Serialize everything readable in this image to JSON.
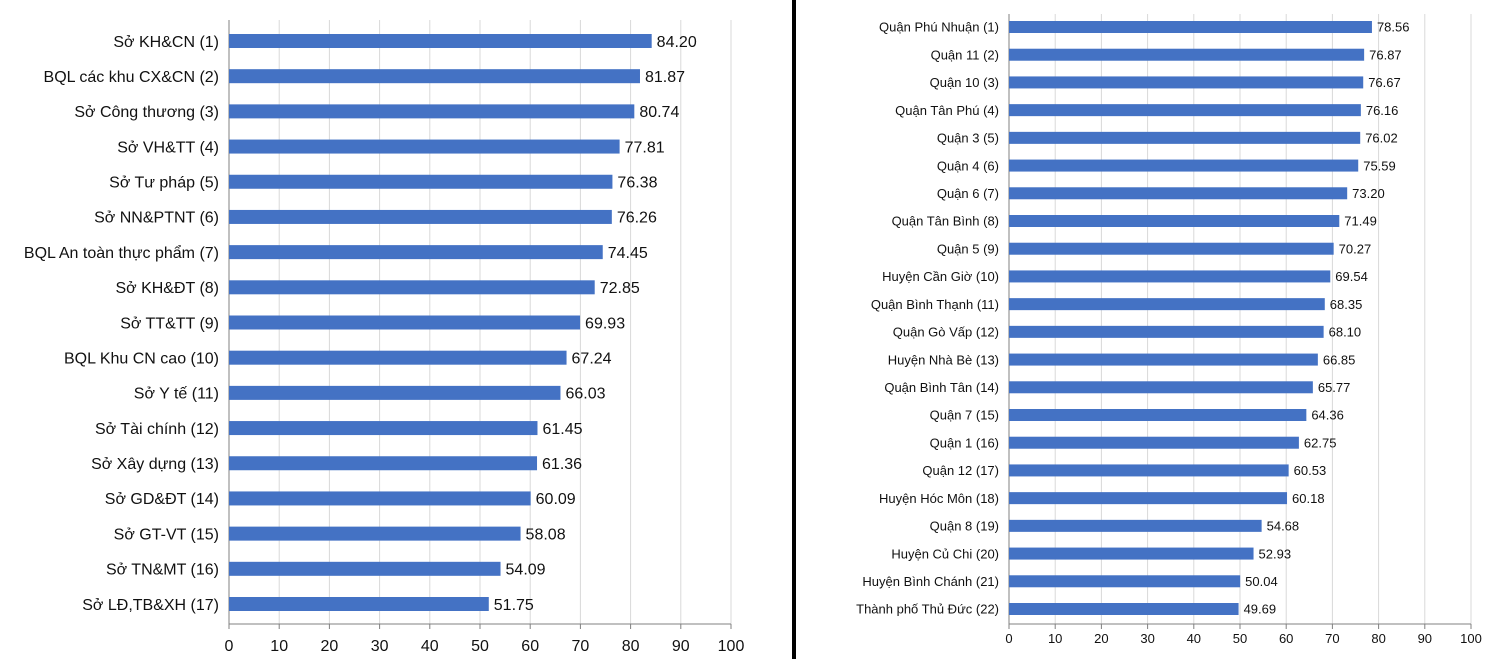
{
  "colors": {
    "bar": "#4472C4",
    "grid": "#d9d9d9",
    "axis": "#808080",
    "divider": "#000000"
  },
  "chart_data": [
    {
      "type": "bar",
      "orientation": "horizontal",
      "title": "",
      "xlabel": "",
      "ylabel": "",
      "xlim": [
        0,
        100
      ],
      "ticks": [
        0,
        10,
        20,
        30,
        40,
        50,
        60,
        70,
        80,
        90,
        100
      ],
      "grid": true,
      "categories": [
        "Sở KH&CN (1)",
        "BQL các khu CX&CN (2)",
        "Sở Công thương (3)",
        "Sở VH&TT (4)",
        "Sở Tư pháp (5)",
        "Sở NN&PTNT (6)",
        "BQL An toàn thực phẩm (7)",
        "Sở KH&ĐT (8)",
        "Sở TT&TT (9)",
        "BQL Khu CN cao (10)",
        "Sở Y tế (11)",
        "Sở Tài chính (12)",
        "Sở Xây dựng (13)",
        "Sở GD&ĐT (14)",
        "Sở GT-VT (15)",
        "Sở TN&MT (16)",
        "Sở LĐ,TB&XH (17)"
      ],
      "values": [
        84.2,
        81.87,
        80.74,
        77.81,
        76.38,
        76.26,
        74.45,
        72.85,
        69.93,
        67.24,
        66.03,
        61.45,
        61.36,
        60.09,
        58.08,
        54.09,
        51.75
      ],
      "value_labels": [
        "84.20",
        "81.87",
        "80.74",
        "77.81",
        "76.38",
        "76.26",
        "74.45",
        "72.85",
        "69.93",
        "67.24",
        "66.03",
        "61.45",
        "61.36",
        "60.09",
        "58.08",
        "54.09",
        "51.75"
      ]
    },
    {
      "type": "bar",
      "orientation": "horizontal",
      "title": "",
      "xlabel": "",
      "ylabel": "",
      "xlim": [
        0,
        100
      ],
      "ticks": [
        0,
        10,
        20,
        30,
        40,
        50,
        60,
        70,
        80,
        90,
        100
      ],
      "grid": true,
      "categories": [
        "Quận Phú Nhuận (1)",
        "Quận 11 (2)",
        "Quận 10 (3)",
        "Quận Tân Phú (4)",
        "Quận 3 (5)",
        "Quận 4 (6)",
        "Quận 6 (7)",
        "Quận Tân Bình (8)",
        "Quận 5 (9)",
        "Huyện Cần Giờ (10)",
        "Quận Bình Thạnh (11)",
        "Quận Gò Vấp (12)",
        "Huyện Nhà Bè (13)",
        "Quận Bình Tân (14)",
        "Quận 7 (15)",
        "Quận 1 (16)",
        "Quận 12 (17)",
        "Huyện Hóc Môn (18)",
        "Quận 8 (19)",
        "Huyện Củ Chi (20)",
        "Huyện Bình Chánh (21)",
        "Thành phố Thủ Đức (22)"
      ],
      "values": [
        78.56,
        76.87,
        76.67,
        76.16,
        76.02,
        75.59,
        73.2,
        71.49,
        70.27,
        69.54,
        68.35,
        68.1,
        66.85,
        65.77,
        64.36,
        62.75,
        60.53,
        60.18,
        54.68,
        52.93,
        50.04,
        49.69
      ],
      "value_labels": [
        "78.56",
        "76.87",
        "76.67",
        "76.16",
        "76.02",
        "75.59",
        "73.20",
        "71.49",
        "70.27",
        "69.54",
        "68.35",
        "68.10",
        "66.85",
        "65.77",
        "64.36",
        "62.75",
        "60.53",
        "60.18",
        "54.68",
        "52.93",
        "50.04",
        "49.69"
      ]
    }
  ]
}
